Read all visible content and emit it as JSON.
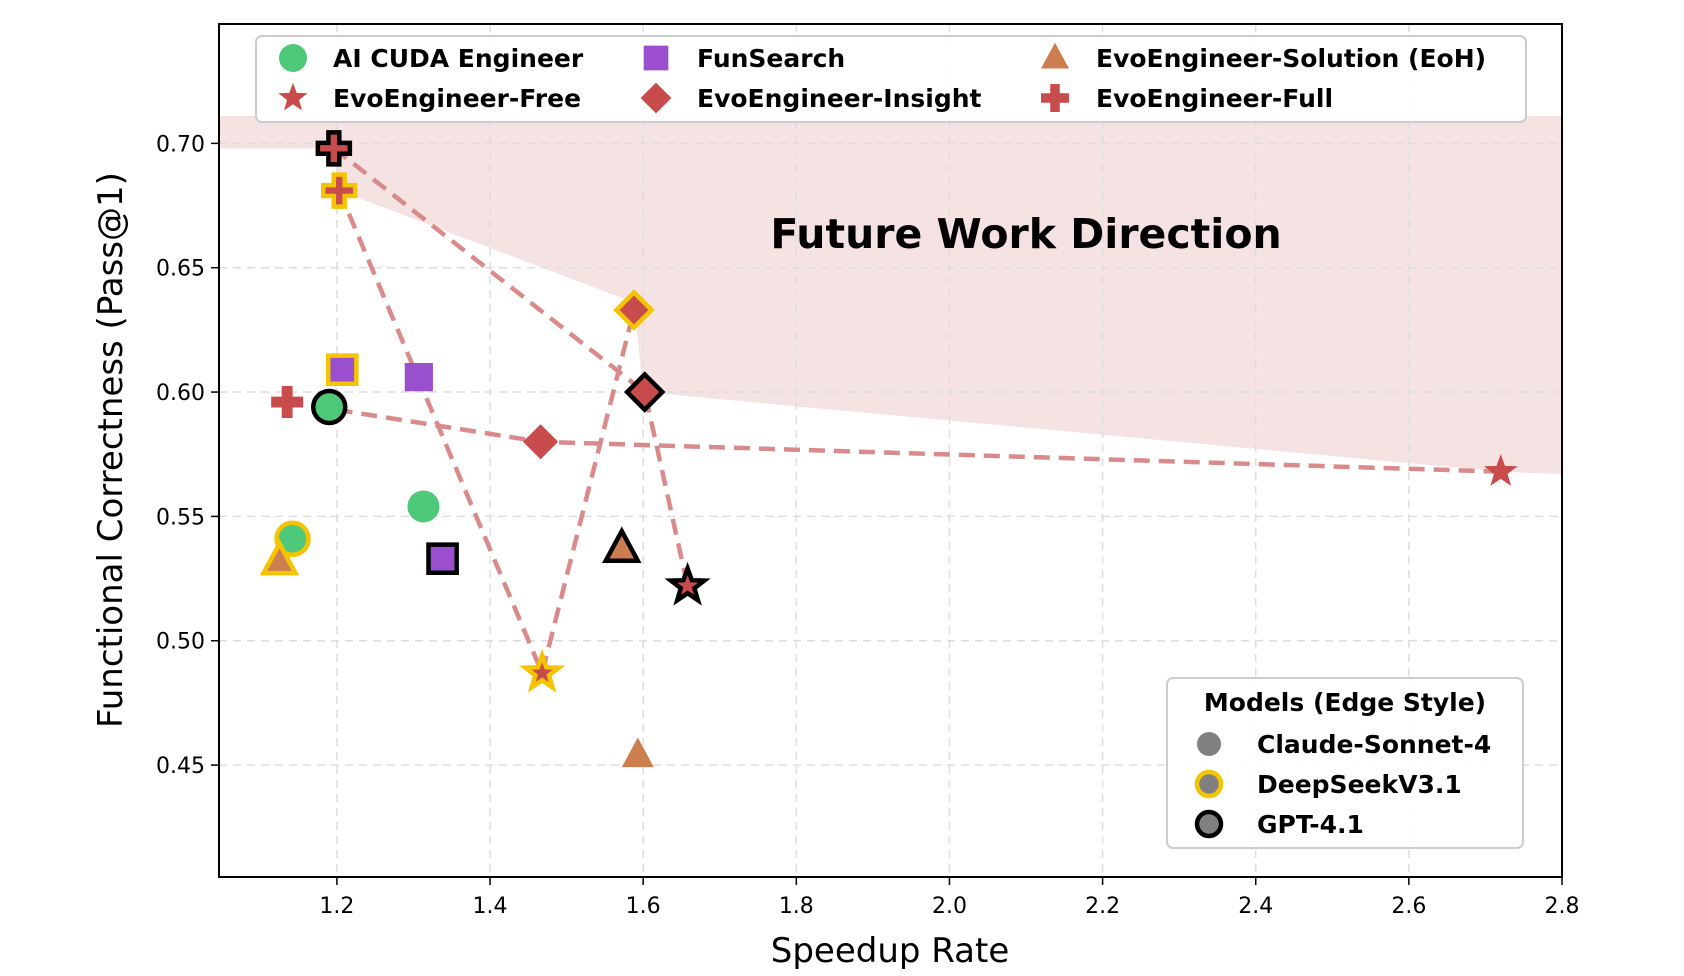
{
  "chart_data": {
    "type": "scatter",
    "title": "",
    "xlabel": "Speedup Rate",
    "ylabel": "Functional Correctness (Pass@1)",
    "xlim": [
      1.046,
      2.8
    ],
    "ylim": [
      0.405,
      0.748
    ],
    "xticks": [
      "1.2",
      "1.4",
      "1.6",
      "1.8",
      "2.0",
      "2.2",
      "2.4",
      "2.6",
      "2.8"
    ],
    "yticks": [
      "0.45",
      "0.50",
      "0.55",
      "0.60",
      "0.65",
      "0.70"
    ],
    "grid": true,
    "annotation": "Future Work Direction",
    "region_color": "#f5e2e2",
    "region_top": 0.711,
    "region_frontier": [
      [
        1.046,
        0.698
      ],
      [
        1.196,
        0.698
      ],
      [
        1.203,
        0.681
      ],
      [
        1.588,
        0.636
      ],
      [
        1.6,
        0.6
      ],
      [
        2.72,
        0.568
      ],
      [
        2.8,
        0.567
      ]
    ],
    "line_color": "#d98a8a",
    "methods": [
      {
        "name": "AI CUDA Engineer",
        "marker": "circle",
        "color": "#4ec97a"
      },
      {
        "name": "FunSearch",
        "marker": "square",
        "color": "#9a4fcf"
      },
      {
        "name": "EvoEngineer-Solution (EoH)",
        "marker": "triangle",
        "color": "#cd7e50"
      },
      {
        "name": "EvoEngineer-Free",
        "marker": "star",
        "color": "#c94c4c"
      },
      {
        "name": "EvoEngineer-Insight",
        "marker": "diamond",
        "color": "#c94c4c"
      },
      {
        "name": "EvoEngineer-Full",
        "marker": "plus",
        "color": "#c94c4c"
      }
    ],
    "models_legend_title": "Models (Edge Style)",
    "models": [
      {
        "name": "Claude-Sonnet-4",
        "edge": "none"
      },
      {
        "name": "DeepSeekV3.1",
        "edge": "#f5c400"
      },
      {
        "name": "GPT-4.1",
        "edge": "#000000"
      }
    ],
    "points": [
      {
        "method": 0,
        "model": 0,
        "x": 1.313,
        "y": 0.554
      },
      {
        "method": 0,
        "model": 1,
        "x": 1.142,
        "y": 0.541
      },
      {
        "method": 0,
        "model": 2,
        "x": 1.19,
        "y": 0.594
      },
      {
        "method": 1,
        "model": 0,
        "x": 1.307,
        "y": 0.606
      },
      {
        "method": 1,
        "model": 1,
        "x": 1.207,
        "y": 0.609
      },
      {
        "method": 1,
        "model": 2,
        "x": 1.338,
        "y": 0.533
      },
      {
        "method": 2,
        "model": 0,
        "x": 1.593,
        "y": 0.454
      },
      {
        "method": 2,
        "model": 1,
        "x": 1.125,
        "y": 0.532
      },
      {
        "method": 2,
        "model": 2,
        "x": 1.572,
        "y": 0.537
      },
      {
        "method": 3,
        "model": 0,
        "x": 2.72,
        "y": 0.568
      },
      {
        "method": 3,
        "model": 1,
        "x": 1.468,
        "y": 0.487
      },
      {
        "method": 3,
        "model": 2,
        "x": 1.658,
        "y": 0.522
      },
      {
        "method": 4,
        "model": 0,
        "x": 1.466,
        "y": 0.58
      },
      {
        "method": 4,
        "model": 1,
        "x": 1.588,
        "y": 0.633
      },
      {
        "method": 4,
        "model": 2,
        "x": 1.602,
        "y": 0.6
      },
      {
        "method": 5,
        "model": 0,
        "x": 1.135,
        "y": 0.596
      },
      {
        "method": 5,
        "model": 1,
        "x": 1.203,
        "y": 0.681
      },
      {
        "method": 5,
        "model": 2,
        "x": 1.196,
        "y": 0.698
      }
    ],
    "dashed_lines": [
      {
        "model": 0,
        "order": [
          5,
          4,
          3
        ]
      },
      {
        "model": 1,
        "order": [
          5,
          3,
          4
        ]
      },
      {
        "model": 2,
        "order": [
          5,
          4,
          3
        ]
      }
    ]
  }
}
